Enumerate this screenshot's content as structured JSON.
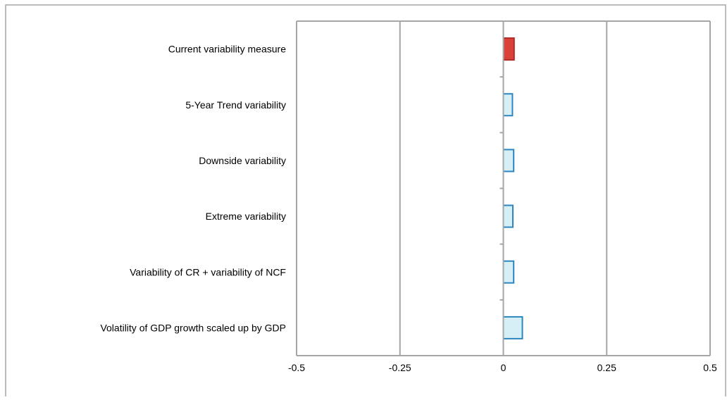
{
  "chart_data": {
    "type": "bar",
    "orientation": "horizontal",
    "categories": [
      "Current variability measure",
      "5-Year Trend variability",
      "Downside variability",
      "Extreme variability",
      "Variability of CR + variability of NCF",
      "Volatility of GDP growth scaled up by GDP"
    ],
    "values": [
      0.026,
      0.022,
      0.025,
      0.023,
      0.025,
      0.046
    ],
    "highlight_index": 0,
    "x_ticks": [
      "-0.5",
      "-0.25",
      "0",
      "0.25",
      "0.5"
    ],
    "xlim": [
      -0.5,
      0.5
    ],
    "grid": "vertical",
    "colors": {
      "highlight_fill": "#d9413b",
      "highlight_stroke": "#b12a25",
      "bar_fill": "#d6eef6",
      "bar_stroke": "#2e86c1",
      "grid": "#a6a6a6",
      "frame": "#a6a6a6"
    }
  }
}
